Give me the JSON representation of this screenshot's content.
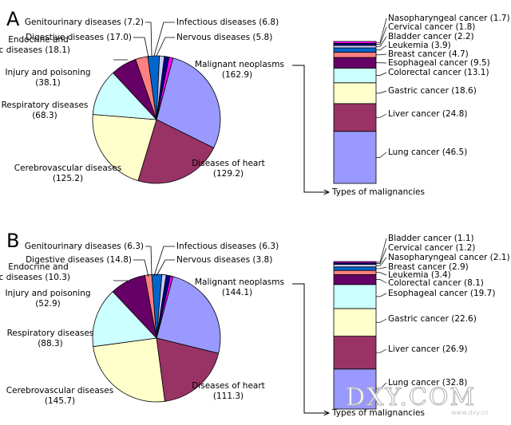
{
  "chart_data": [
    {
      "type": "pie",
      "panel_label": "A",
      "slices": [
        {
          "name": "Malignant neoplasms",
          "value": 162.9,
          "color": "#9999ff"
        },
        {
          "name": "Diseases of heart",
          "value": 129.2,
          "color": "#993366"
        },
        {
          "name": "Cerebrovascular diseases",
          "value": 125.2,
          "color": "#ffffcc"
        },
        {
          "name": "Respiratory diseases",
          "value": 68.3,
          "color": "#ccffff"
        },
        {
          "name": "Injury and poisoning",
          "value": 38.1,
          "color": "#660066"
        },
        {
          "name": "Endocrine and metabolic diseases",
          "value": 18.1,
          "color": "#ff8080"
        },
        {
          "name": "Digestive diseases",
          "value": 17.0,
          "color": "#0066cc"
        },
        {
          "name": "Genitourinary diseases",
          "value": 7.2,
          "color": "#ccccff"
        },
        {
          "name": "Infectious diseases",
          "value": 6.8,
          "color": "#000080"
        },
        {
          "name": "Nervous diseases",
          "value": 5.8,
          "color": "#ff00ff"
        }
      ],
      "labels": [
        {
          "text": "Malignant neoplasms",
          "value": "(162.9)"
        },
        {
          "text": "Diseases of heart",
          "value": "(129.2)"
        },
        {
          "text": "Cerebrovascular diseases",
          "value": "(125.2)"
        },
        {
          "text": "Respiratory diseases",
          "value": "(68.3)"
        },
        {
          "text": "Injury and poisoning",
          "value": "(38.1)"
        },
        {
          "text": "Endocrine and",
          "text2": "metabolic diseases",
          "value": "(18.1)"
        },
        {
          "text": "Digestive diseases",
          "value": "(17.0)"
        },
        {
          "text": "Genitourinary diseases",
          "value": "(7.2)"
        },
        {
          "text": "Infectious diseases",
          "value": "(6.8)"
        },
        {
          "text": "Nervous diseases",
          "value": "(5.8)"
        }
      ],
      "stack_title": "Types of malignancies",
      "stack": [
        {
          "name": "Lung cancer",
          "value": 46.5,
          "color": "#9999ff"
        },
        {
          "name": "Liver cancer",
          "value": 24.8,
          "color": "#993366"
        },
        {
          "name": "Gastric cancer",
          "value": 18.6,
          "color": "#ffffcc"
        },
        {
          "name": "Colorectal cancer",
          "value": 13.1,
          "color": "#ccffff"
        },
        {
          "name": "Esophageal cancer",
          "value": 9.5,
          "color": "#660066"
        },
        {
          "name": "Breast cancer",
          "value": 4.7,
          "color": "#ff8080"
        },
        {
          "name": "Leukemia",
          "value": 3.9,
          "color": "#0066cc"
        },
        {
          "name": "Bladder cancer",
          "value": 2.2,
          "color": "#ccccff"
        },
        {
          "name": "Cervical cancer",
          "value": 1.8,
          "color": "#000080"
        },
        {
          "name": "Nasopharyngeal cancer",
          "value": 1.7,
          "color": "#ff00ff"
        }
      ],
      "stack_labels": [
        "Lung cancer (46.5)",
        "Liver cancer (24.8)",
        "Gastric cancer (18.6)",
        "Colorectal cancer (13.1)",
        "Esophageal cancer (9.5)",
        "Breast cancer (4.7)",
        "Leukemia (3.9)",
        "Bladder cancer (2.2)",
        "Cervical cancer (1.8)",
        "Nasopharyngeal cancer (1.7)"
      ]
    },
    {
      "type": "pie",
      "panel_label": "B",
      "slices": [
        {
          "name": "Malignant neoplasms",
          "value": 144.1,
          "color": "#9999ff"
        },
        {
          "name": "Diseases of heart",
          "value": 111.3,
          "color": "#993366"
        },
        {
          "name": "Cerebrovascular diseases",
          "value": 145.7,
          "color": "#ffffcc"
        },
        {
          "name": "Respiratory diseases",
          "value": 88.3,
          "color": "#ccffff"
        },
        {
          "name": "Injury and poisoning",
          "value": 52.9,
          "color": "#660066"
        },
        {
          "name": "Endocrine and metabolic diseases",
          "value": 10.3,
          "color": "#ff8080"
        },
        {
          "name": "Digestive diseases",
          "value": 14.8,
          "color": "#0066cc"
        },
        {
          "name": "Genitourinary diseases",
          "value": 6.3,
          "color": "#ccccff"
        },
        {
          "name": "Infectious diseases",
          "value": 6.3,
          "color": "#000080"
        },
        {
          "name": "Nervous diseases",
          "value": 3.8,
          "color": "#ff00ff"
        }
      ],
      "labels": [
        {
          "text": "Malignant neoplasms",
          "value": "(144.1)"
        },
        {
          "text": "Diseases of heart",
          "value": "(111.3)"
        },
        {
          "text": "Cerebrovascular diseases",
          "value": "(145.7)"
        },
        {
          "text": "Respiratory diseases",
          "value": "(88.3)"
        },
        {
          "text": "Injury and poisoning",
          "value": "(52.9)"
        },
        {
          "text": "Endocrine and",
          "text2": "metabolic diseases",
          "value": "(10.3)"
        },
        {
          "text": "Digestive diseases",
          "value": "(14.8)"
        },
        {
          "text": "Genitourinary diseases",
          "value": "(6.3)"
        },
        {
          "text": "Infectious diseases",
          "value": "(6.3)"
        },
        {
          "text": "Nervous diseases",
          "value": "(3.8)"
        }
      ],
      "stack_title": "Types of malignancies",
      "stack": [
        {
          "name": "Lung cancer",
          "value": 32.8,
          "color": "#9999ff"
        },
        {
          "name": "Liver cancer",
          "value": 26.9,
          "color": "#993366"
        },
        {
          "name": "Gastric cancer",
          "value": 22.6,
          "color": "#ffffcc"
        },
        {
          "name": "Esophageal cancer",
          "value": 19.7,
          "color": "#ccffff"
        },
        {
          "name": "Colorectal cancer",
          "value": 8.1,
          "color": "#660066"
        },
        {
          "name": "Leukemia",
          "value": 3.4,
          "color": "#ff8080"
        },
        {
          "name": "Breast cancer",
          "value": 2.9,
          "color": "#0066cc"
        },
        {
          "name": "Nasopharyngeal cancer",
          "value": 2.1,
          "color": "#ccccff"
        },
        {
          "name": "Cervical cancer",
          "value": 1.2,
          "color": "#000080"
        },
        {
          "name": "Bladder cancer",
          "value": 1.1,
          "color": "#ff00ff"
        }
      ],
      "stack_labels": [
        "Lung cancer (32.8)",
        "Liver cancer (26.9)",
        "Gastric cancer (22.6)",
        "Esophageal cancer (19.7)",
        "Colorectal cancer (8.1)",
        "Leukemia (3.4)",
        "Breast cancer (2.9)",
        "Nasopharyngeal cancer (2.1)",
        "Cervical cancer (1.2)",
        "Bladder cancer (1.1)"
      ]
    }
  ],
  "watermark": {
    "text": "DXY.COM",
    "sub": "www.dxy.cn"
  }
}
